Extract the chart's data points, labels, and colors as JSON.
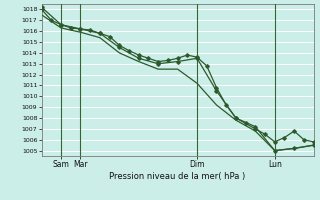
{
  "xlabel": "Pression niveau de la mer( hPa )",
  "ylim": [
    1004.5,
    1018.5
  ],
  "yticks": [
    1005,
    1006,
    1007,
    1008,
    1009,
    1010,
    1011,
    1012,
    1013,
    1014,
    1015,
    1016,
    1017,
    1018
  ],
  "xlim": [
    0,
    168
  ],
  "xtick_positions": [
    12,
    24,
    96,
    144
  ],
  "xtick_labels": [
    "Sam",
    "Mar",
    "Dim",
    "Lun"
  ],
  "vline_positions": [
    12,
    24,
    96,
    144
  ],
  "bg_color": "#cceee8",
  "grid_color": "#ffffff",
  "vline_color": "#336633",
  "line_color": "#2d5a2d",
  "series1_x": [
    0,
    6,
    12,
    18,
    24,
    30,
    36,
    42,
    48,
    54,
    60,
    66,
    72,
    78,
    84,
    90,
    96,
    102,
    108,
    114,
    120,
    126,
    132,
    138,
    144,
    150,
    156,
    162,
    168
  ],
  "series1_y": [
    1018.0,
    1017.0,
    1016.6,
    1016.3,
    1016.2,
    1016.1,
    1015.8,
    1015.5,
    1014.7,
    1014.2,
    1013.8,
    1013.5,
    1013.2,
    1013.3,
    1013.5,
    1013.8,
    1013.6,
    1012.8,
    1010.8,
    1009.2,
    1008.0,
    1007.5,
    1007.0,
    1006.5,
    1005.8,
    1006.2,
    1006.8,
    1006.0,
    1005.8
  ],
  "series2_x": [
    0,
    12,
    24,
    36,
    48,
    60,
    72,
    84,
    96,
    108,
    120,
    132,
    144,
    156,
    168
  ],
  "series2_y": [
    1018.2,
    1016.6,
    1016.2,
    1015.8,
    1014.5,
    1013.5,
    1013.0,
    1013.2,
    1013.5,
    1010.5,
    1008.0,
    1007.2,
    1005.0,
    1005.2,
    1005.5
  ],
  "series3_x": [
    0,
    12,
    24,
    36,
    48,
    60,
    72,
    84,
    96,
    108,
    120,
    132,
    144,
    156,
    168
  ],
  "series3_y": [
    1017.5,
    1016.3,
    1015.9,
    1015.4,
    1014.0,
    1013.2,
    1012.5,
    1012.5,
    1011.2,
    1009.2,
    1007.8,
    1006.8,
    1005.0,
    1005.2,
    1005.5
  ]
}
